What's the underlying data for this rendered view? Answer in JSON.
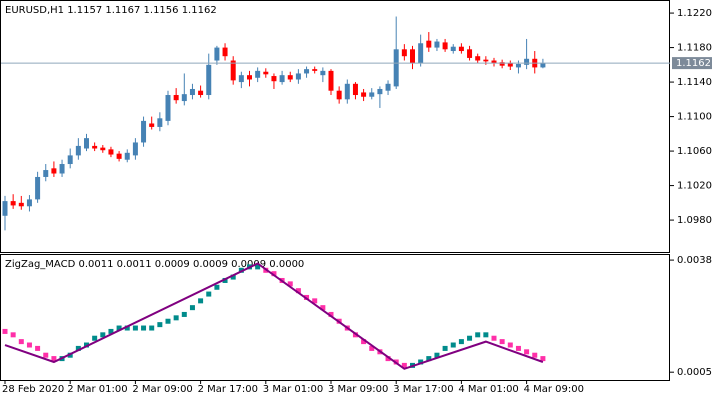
{
  "chart_data": [
    {
      "type": "candlestick",
      "title": "EURUSD,H1  1.1157 1.1167 1.1156 1.1162",
      "open": [
        1.0985,
        1.1002,
        1.1,
        1.0996,
        1.1004,
        1.103,
        1.104,
        1.1034,
        1.1045,
        1.1055,
        1.1063,
        1.1066,
        1.1064,
        1.1062,
        1.1057,
        1.105,
        1.1055,
        1.107,
        1.1092,
        1.1088,
        1.1095,
        1.1125,
        1.1118,
        1.1125,
        1.113,
        1.1125,
        1.1165,
        1.118,
        1.1165,
        1.114,
        1.1148,
        1.1145,
        1.1152,
        1.1147,
        1.114,
        1.1148,
        1.1143,
        1.115,
        1.1155,
        1.1148,
        1.1153,
        1.113,
        1.112,
        1.1138,
        1.1128,
        1.1123,
        1.1126,
        1.113,
        1.1135,
        1.1178,
        1.1178,
        1.1162,
        1.1188,
        1.118,
        1.1186,
        1.1176,
        1.1181,
        1.1178,
        1.117,
        1.1166,
        1.1165,
        1.1163,
        1.1162,
        1.1157,
        1.116,
        1.1167,
        1.1157
      ],
      "high": [
        1.1008,
        1.101,
        1.1008,
        1.1009,
        1.1036,
        1.1045,
        1.1048,
        1.105,
        1.1063,
        1.1075,
        1.108,
        1.107,
        1.1067,
        1.1065,
        1.106,
        1.1062,
        1.1075,
        1.11,
        1.11,
        1.1105,
        1.113,
        1.1133,
        1.115,
        1.1138,
        1.1136,
        1.1173,
        1.1182,
        1.1185,
        1.117,
        1.1152,
        1.1153,
        1.1157,
        1.1156,
        1.115,
        1.1153,
        1.1152,
        1.1155,
        1.1158,
        1.1158,
        1.1157,
        1.1155,
        1.1135,
        1.1143,
        1.114,
        1.1132,
        1.1133,
        1.1135,
        1.1142,
        1.1216,
        1.1184,
        1.1182,
        1.1195,
        1.1198,
        1.119,
        1.119,
        1.1184,
        1.1185,
        1.1182,
        1.1173,
        1.117,
        1.1168,
        1.1166,
        1.1165,
        1.1165,
        1.119,
        1.1176,
        1.1167
      ],
      "low": [
        1.0968,
        1.0993,
        1.0992,
        1.099,
        1.1,
        1.1025,
        1.103,
        1.103,
        1.104,
        1.105,
        1.106,
        1.106,
        1.1058,
        1.1053,
        1.1048,
        1.1047,
        1.105,
        1.1065,
        1.1085,
        1.1083,
        1.109,
        1.1115,
        1.1113,
        1.112,
        1.1122,
        1.112,
        1.116,
        1.1165,
        1.1137,
        1.1133,
        1.1135,
        1.114,
        1.1145,
        1.1132,
        1.1137,
        1.114,
        1.1138,
        1.1145,
        1.115,
        1.114,
        1.1125,
        1.1115,
        1.1115,
        1.112,
        1.1118,
        1.112,
        1.111,
        1.1125,
        1.1132,
        1.1165,
        1.1155,
        1.1158,
        1.1175,
        1.1176,
        1.1175,
        1.1173,
        1.1173,
        1.1165,
        1.1162,
        1.116,
        1.1158,
        1.1156,
        1.1154,
        1.115,
        1.1155,
        1.115,
        1.1156
      ],
      "close": [
        1.1002,
        1.0997,
        1.0996,
        1.1004,
        1.103,
        1.1038,
        1.1034,
        1.1045,
        1.1055,
        1.1066,
        1.1075,
        1.1063,
        1.1061,
        1.1056,
        1.1051,
        1.1058,
        1.107,
        1.1095,
        1.1088,
        1.1098,
        1.1125,
        1.1119,
        1.1126,
        1.1132,
        1.1125,
        1.116,
        1.118,
        1.117,
        1.1142,
        1.1148,
        1.1143,
        1.1153,
        1.1149,
        1.1141,
        1.1148,
        1.1143,
        1.115,
        1.1155,
        1.1153,
        1.1153,
        1.113,
        1.112,
        1.1138,
        1.1125,
        1.1123,
        1.1128,
        1.1132,
        1.1138,
        1.1178,
        1.117,
        1.1162,
        1.1185,
        1.118,
        1.1187,
        1.1178,
        1.1181,
        1.1176,
        1.1168,
        1.1165,
        1.1164,
        1.1162,
        1.1159,
        1.1158,
        1.1161,
        1.1167,
        1.1157,
        1.1162
      ],
      "up_color": "#4682b4",
      "down_color": "#ff0000",
      "price_line": 1.1162,
      "price_line_color": "#8fa7bb",
      "ylim": [
        1.0943,
        1.1234
      ],
      "yticks": [
        {
          "value": 1.122,
          "label": "1.1220"
        },
        {
          "value": 1.118,
          "label": "1.1180"
        },
        {
          "value": 1.114,
          "label": "1.1140"
        },
        {
          "value": 1.11,
          "label": "1.1100"
        },
        {
          "value": 1.106,
          "label": "1.1060"
        },
        {
          "value": 1.102,
          "label": "1.1020"
        },
        {
          "value": 1.098,
          "label": "1.0980"
        }
      ]
    },
    {
      "type": "indicator",
      "title": "ZigZag_MACD 0.0011 0.0011 0.0009 0.0009 0.0009 0.0000",
      "categories": [
        "28 Feb 2020",
        null,
        null,
        null,
        null,
        null,
        null,
        null,
        "2 Mar 01:00",
        null,
        null,
        null,
        null,
        null,
        null,
        null,
        "2 Mar 09:00",
        null,
        null,
        null,
        null,
        null,
        null,
        null,
        "2 Mar 17:00",
        null,
        null,
        null,
        null,
        null,
        null,
        null,
        "3 Mar 01:00",
        null,
        null,
        null,
        null,
        null,
        null,
        null,
        "3 Mar 09:00",
        null,
        null,
        null,
        null,
        null,
        null,
        null,
        "3 Mar 17:00",
        null,
        null,
        null,
        null,
        null,
        null,
        null,
        "4 Mar 01:00",
        null,
        null,
        null,
        null,
        null,
        null,
        null,
        "4 Mar 09:00",
        null,
        null
      ],
      "values": [
        0.0017,
        0.0016,
        0.0014,
        0.0013,
        0.0012,
        0.001,
        0.0009,
        0.0009,
        0.001,
        0.0012,
        0.0013,
        0.0015,
        0.0016,
        0.0017,
        0.0018,
        0.0018,
        0.0018,
        0.0018,
        0.0018,
        0.0019,
        0.002,
        0.0021,
        0.0022,
        0.0024,
        0.0026,
        0.0028,
        0.003,
        0.0032,
        0.0033,
        0.0035,
        0.0036,
        0.0036,
        0.0035,
        0.0034,
        0.0032,
        0.0031,
        0.0029,
        0.0027,
        0.0026,
        0.0024,
        0.0022,
        0.002,
        0.0018,
        0.0016,
        0.0014,
        0.0012,
        0.0011,
        0.0009,
        0.0008,
        0.0007,
        0.0007,
        0.0008,
        0.0009,
        0.001,
        0.0012,
        0.0013,
        0.0014,
        0.0015,
        0.0016,
        0.0016,
        0.0015,
        0.0014,
        0.0013,
        0.0012,
        0.0011,
        0.001,
        0.0009
      ],
      "up_color": "#008b8b",
      "down_color": "#ff2fa8",
      "zigzag": {
        "x": [
          0,
          6,
          31,
          49,
          59,
          66
        ],
        "values": [
          0.0013,
          0.0008,
          0.0037,
          0.0006,
          0.0014,
          0.0008
        ],
        "color": "#800080"
      },
      "ylim": [
        0.00027,
        0.00395
      ],
      "yticks": [
        0.0038,
        0.0005
      ]
    }
  ]
}
